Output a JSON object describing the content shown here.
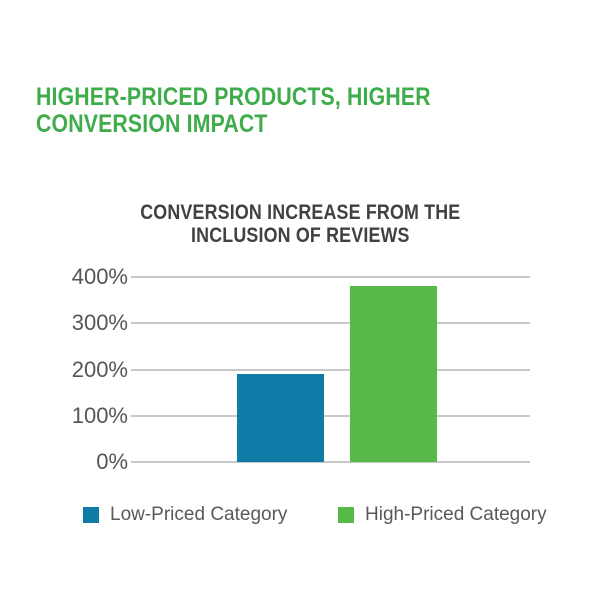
{
  "page": {
    "background": "#ffffff",
    "headline": "HIGHER-PRICED PRODUCTS, HIGHER\nCONVERSION IMPACT",
    "headline_color": "#3eac4a"
  },
  "chart_data": {
    "type": "bar",
    "title": "CONVERSION INCREASE FROM THE\nINCLUSION OF REVIEWS",
    "title_color": "#414042",
    "categories": [
      "Low-Priced Category",
      "High-Priced Category"
    ],
    "values": [
      190,
      380
    ],
    "unit": "%",
    "ylim": [
      0,
      400
    ],
    "y_ticks": [
      {
        "label": "400%",
        "value": 400
      },
      {
        "label": "300%",
        "value": 300
      },
      {
        "label": "200%",
        "value": 200
      },
      {
        "label": "100%",
        "value": 100
      },
      {
        "label": "0%",
        "value": 0
      }
    ],
    "grid": true,
    "gridline_color": "#c9c9c9",
    "tick_color": "#55565a",
    "colors": [
      "#0e7ca6",
      "#57b948"
    ],
    "legend_position": "bottom",
    "legend": [
      {
        "label": "Low-Priced Category",
        "color": "#0e7ca6"
      },
      {
        "label": "High-Priced Category",
        "color": "#57b948"
      }
    ]
  }
}
